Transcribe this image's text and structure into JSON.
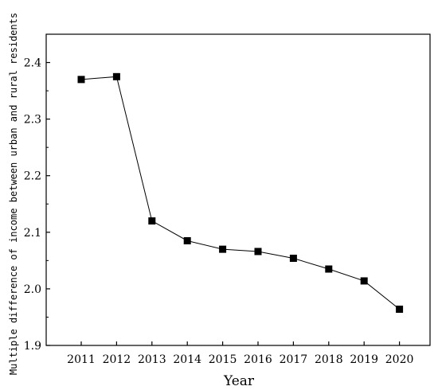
{
  "chart_data": {
    "type": "line",
    "title": "",
    "xlabel": "Year",
    "ylabel": "Multiple difference of income between urban and rural residents",
    "categories": [
      "2011",
      "2012",
      "2013",
      "2014",
      "2015",
      "2016",
      "2017",
      "2018",
      "2019",
      "2020"
    ],
    "series": [
      {
        "values": [
          2.37,
          2.375,
          2.12,
          2.085,
          2.07,
          2.066,
          2.054,
          2.035,
          2.014,
          1.964
        ],
        "marker": "square",
        "color": "#000000"
      }
    ],
    "ylim": [
      1.9,
      2.45
    ],
    "yticks": [
      1.9,
      2.0,
      2.1,
      2.2,
      2.3,
      2.4
    ],
    "ytick_labels": [
      "1.9",
      "2.0",
      "2.1",
      "2.2",
      "2.3",
      "2.4"
    ],
    "grid": false,
    "legend": "none"
  }
}
